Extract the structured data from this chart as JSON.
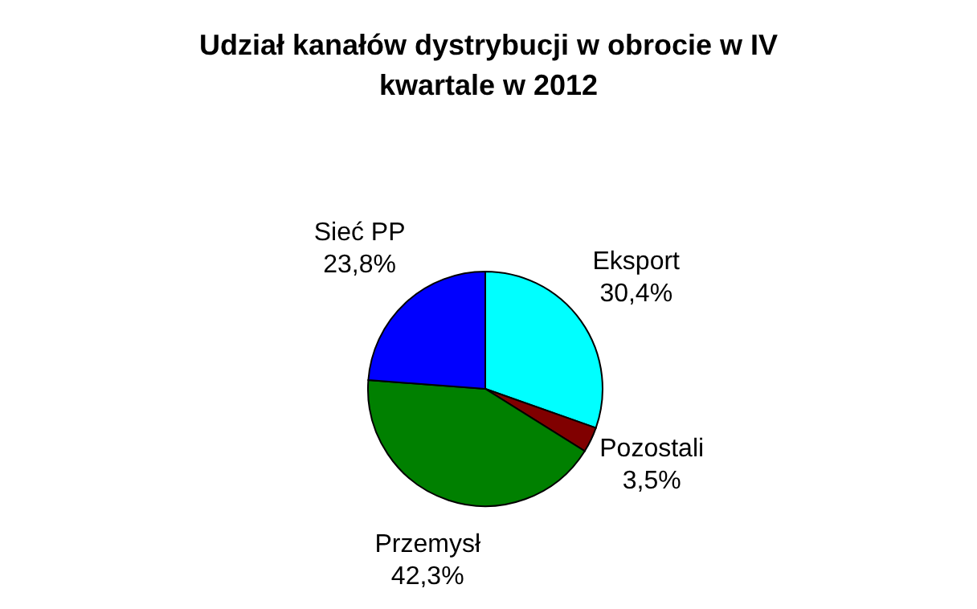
{
  "chart_data": {
    "type": "pie",
    "title": "Udział kanałów dystrybucji w obrocie w IV kwartale w 2012",
    "categories": [
      "Eksport",
      "Pozostali",
      "Przemysł",
      "Sieć PP"
    ],
    "values": [
      30.4,
      3.5,
      42.3,
      23.8
    ],
    "colors": [
      "#00ffff",
      "#800000",
      "#008000",
      "#0000ff"
    ],
    "value_labels": [
      "30,4%",
      "3,5%",
      "42,3%",
      "23,8%"
    ],
    "legend": false
  }
}
